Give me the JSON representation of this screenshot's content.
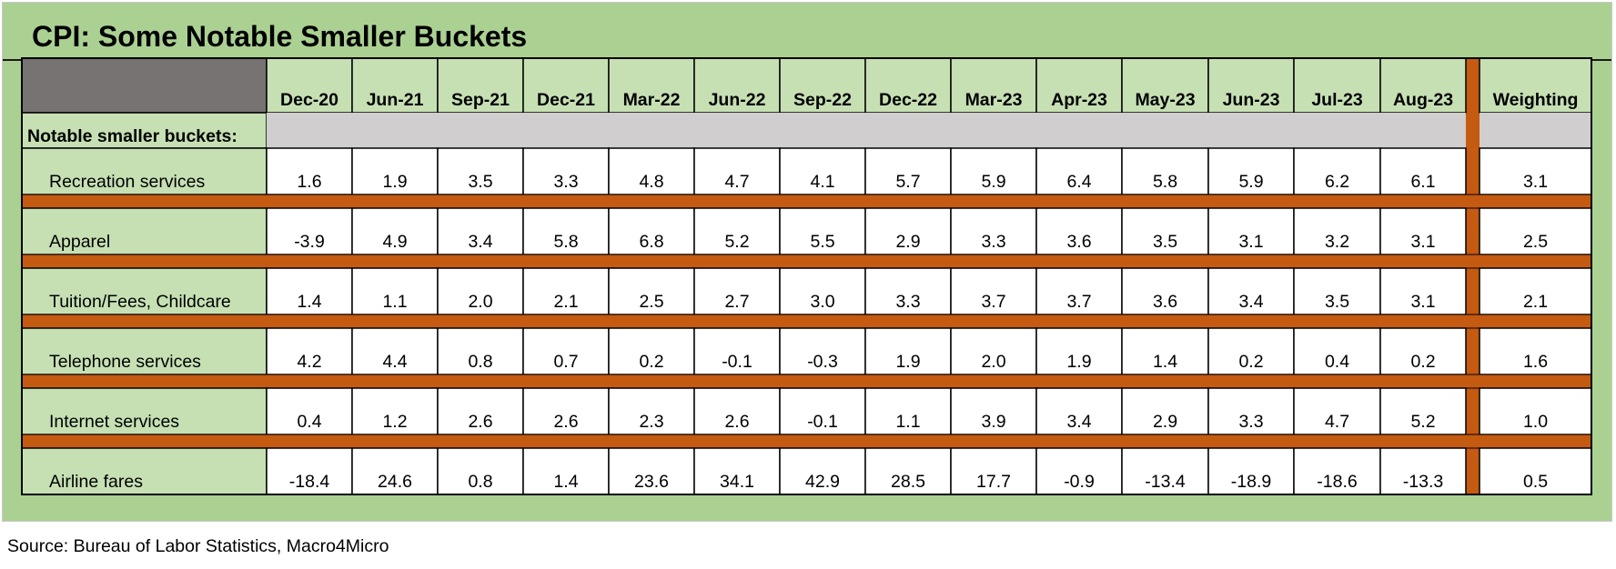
{
  "title": "CPI: Some Notable Smaller Buckets",
  "source": "Source: Bureau of Labor Statistics, Macro4Micro",
  "colors": {
    "frame_green": "#abd192",
    "light_green": "#c6e0b4",
    "separator_orange": "#c55a11",
    "header_gray": "#787373",
    "band_gray": "#d0cece",
    "cell_white": "#ffffff"
  },
  "chart_data": {
    "type": "table",
    "title": "CPI: Some Notable Smaller Buckets",
    "section_label": "Notable smaller buckets:",
    "columns": [
      "Dec-20",
      "Jun-21",
      "Sep-21",
      "Dec-21",
      "Mar-22",
      "Jun-22",
      "Sep-22",
      "Dec-22",
      "Mar-23",
      "Apr-23",
      "May-23",
      "Jun-23",
      "Jul-23",
      "Aug-23"
    ],
    "weight_header": "Weighting",
    "rows": [
      {
        "label": "Recreation services",
        "values": [
          "1.6",
          "1.9",
          "3.5",
          "3.3",
          "4.8",
          "4.7",
          "4.1",
          "5.7",
          "5.9",
          "6.4",
          "5.8",
          "5.9",
          "6.2",
          "6.1"
        ],
        "weight": "3.1"
      },
      {
        "label": "Apparel",
        "values": [
          "-3.9",
          "4.9",
          "3.4",
          "5.8",
          "6.8",
          "5.2",
          "5.5",
          "2.9",
          "3.3",
          "3.6",
          "3.5",
          "3.1",
          "3.2",
          "3.1"
        ],
        "weight": "2.5"
      },
      {
        "label": "Tuition/Fees, Childcare",
        "values": [
          "1.4",
          "1.1",
          "2.0",
          "2.1",
          "2.5",
          "2.7",
          "3.0",
          "3.3",
          "3.7",
          "3.7",
          "3.6",
          "3.4",
          "3.5",
          "3.1"
        ],
        "weight": "2.1"
      },
      {
        "label": "Telephone services",
        "values": [
          "4.2",
          "4.4",
          "0.8",
          "0.7",
          "0.2",
          "-0.1",
          "-0.3",
          "1.9",
          "2.0",
          "1.9",
          "1.4",
          "0.2",
          "0.4",
          "0.2"
        ],
        "weight": "1.6"
      },
      {
        "label": "Internet services",
        "values": [
          "0.4",
          "1.2",
          "2.6",
          "2.6",
          "2.3",
          "2.6",
          "-0.1",
          "1.1",
          "3.9",
          "3.4",
          "2.9",
          "3.3",
          "4.7",
          "5.2"
        ],
        "weight": "1.0"
      },
      {
        "label": "Airline fares",
        "values": [
          "-18.4",
          "24.6",
          "0.8",
          "1.4",
          "23.6",
          "34.1",
          "42.9",
          "28.5",
          "17.7",
          "-0.9",
          "-13.4",
          "-18.9",
          "-18.6",
          "-13.3"
        ],
        "weight": "0.5"
      }
    ]
  }
}
